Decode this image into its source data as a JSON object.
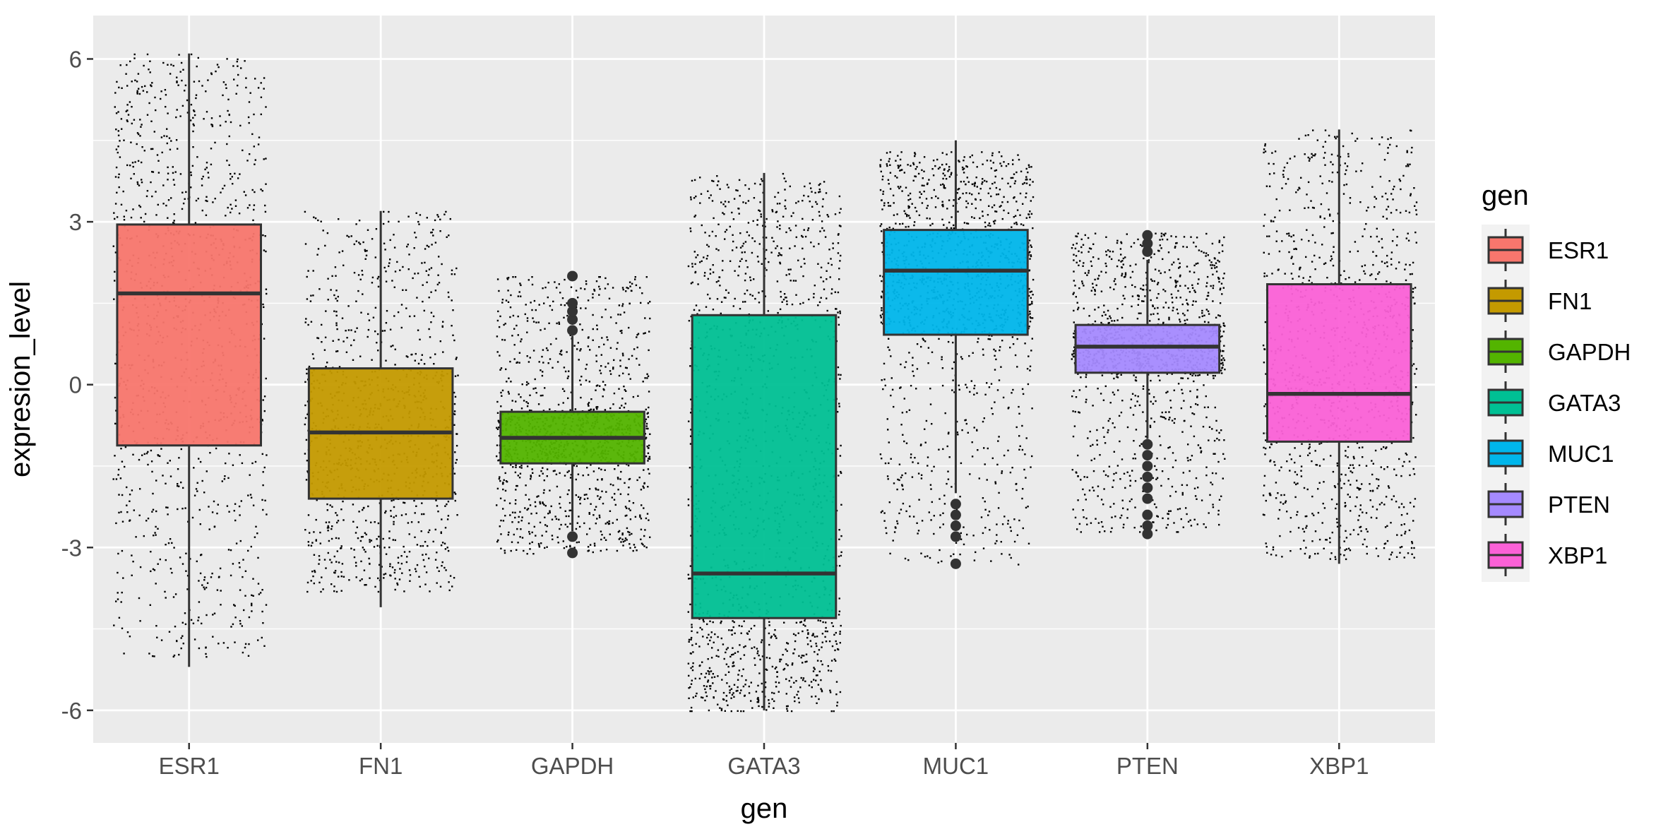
{
  "chart_data": {
    "type": "box",
    "title": "",
    "xlabel": "gen",
    "ylabel": "expresion_level",
    "categories": [
      "ESR1",
      "FN1",
      "GAPDH",
      "GATA3",
      "MUC1",
      "PTEN",
      "XBP1"
    ],
    "ylim": [
      -6.6,
      6.8
    ],
    "yticks": [
      -6,
      -3,
      0,
      3,
      6
    ],
    "ytick_labels": [
      "-6",
      "-3",
      "0",
      "3",
      "6"
    ],
    "grid": true,
    "jitter_points": true,
    "legend": {
      "title": "gen",
      "position": "right"
    },
    "boxes": [
      {
        "category": "ESR1",
        "color": "#F8766D",
        "q1": -1.12,
        "median": 1.68,
        "q3": 2.95,
        "whisker_low": -5.2,
        "whisker_high": 6.1,
        "outliers": [],
        "jitter_min": -5.0,
        "jitter_max": 6.1,
        "points": 1200
      },
      {
        "category": "FN1",
        "color": "#C49A00",
        "q1": -2.1,
        "median": -0.88,
        "q3": 0.3,
        "whisker_low": -4.1,
        "whisker_high": 3.2,
        "outliers": [],
        "jitter_min": -3.8,
        "jitter_max": 3.2,
        "points": 1100
      },
      {
        "category": "GAPDH",
        "color": "#53B400",
        "q1": -1.45,
        "median": -0.98,
        "q3": -0.5,
        "whisker_low": -2.7,
        "whisker_high": 0.9,
        "outliers": [
          -2.8,
          -3.1,
          1.0,
          1.2,
          1.35,
          1.5,
          2.0
        ],
        "jitter_min": -3.1,
        "jitter_max": 2.0,
        "points": 1400
      },
      {
        "category": "GATA3",
        "color": "#00C094",
        "q1": -4.3,
        "median": -3.48,
        "q3": 1.28,
        "whisker_low": -6.0,
        "whisker_high": 3.9,
        "outliers": [],
        "jitter_min": -6.0,
        "jitter_max": 3.9,
        "points": 1500
      },
      {
        "category": "MUC1",
        "color": "#00B6EB",
        "q1": 0.92,
        "median": 2.1,
        "q3": 2.85,
        "whisker_low": -2.0,
        "whisker_high": 4.5,
        "outliers": [
          -2.2,
          -2.4,
          -2.6,
          -2.8,
          -3.3
        ],
        "jitter_min": -3.3,
        "jitter_max": 4.3,
        "points": 1400
      },
      {
        "category": "PTEN",
        "color": "#A58AFF",
        "q1": 0.22,
        "median": 0.7,
        "q3": 1.1,
        "whisker_low": -1.0,
        "whisker_high": 2.3,
        "outliers": [
          2.45,
          2.6,
          2.75,
          -1.1,
          -1.3,
          -1.5,
          -1.7,
          -1.9,
          -2.1,
          -2.4,
          -2.6,
          -2.75
        ],
        "jitter_min": -2.7,
        "jitter_max": 2.8,
        "points": 1400
      },
      {
        "category": "XBP1",
        "color": "#FB61D7",
        "q1": -1.05,
        "median": -0.17,
        "q3": 1.85,
        "whisker_low": -3.3,
        "whisker_high": 4.7,
        "outliers": [],
        "jitter_min": -3.2,
        "jitter_max": 4.7,
        "points": 1200
      }
    ]
  }
}
